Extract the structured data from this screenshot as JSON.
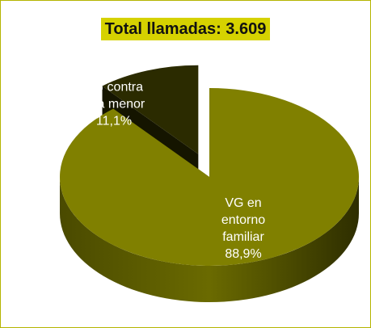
{
  "chart_data": {
    "type": "pie",
    "title": "Total llamadas: 3.609",
    "categories": [
      "VG en entorno familiar",
      "VG contra una menor"
    ],
    "values": [
      88.9,
      11.1
    ],
    "value_labels": [
      "88,9%",
      "11,1%"
    ],
    "colors": [
      "#808000",
      "#2b2b00"
    ]
  }
}
